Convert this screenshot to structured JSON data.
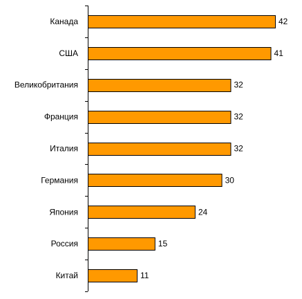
{
  "chart_data": {
    "type": "bar",
    "orientation": "horizontal",
    "categories": [
      "Канада",
      "США",
      "Великобритания",
      "Франция",
      "Италия",
      "Германия",
      "Япония",
      "Россия",
      "Китай"
    ],
    "values": [
      42,
      41,
      32,
      32,
      32,
      30,
      24,
      15,
      11
    ],
    "title": "",
    "xlabel": "",
    "ylabel": "",
    "xlim": [
      0,
      42
    ],
    "grid": false,
    "legend": "none",
    "bar_color": "#ff9900",
    "data_labels": true
  }
}
